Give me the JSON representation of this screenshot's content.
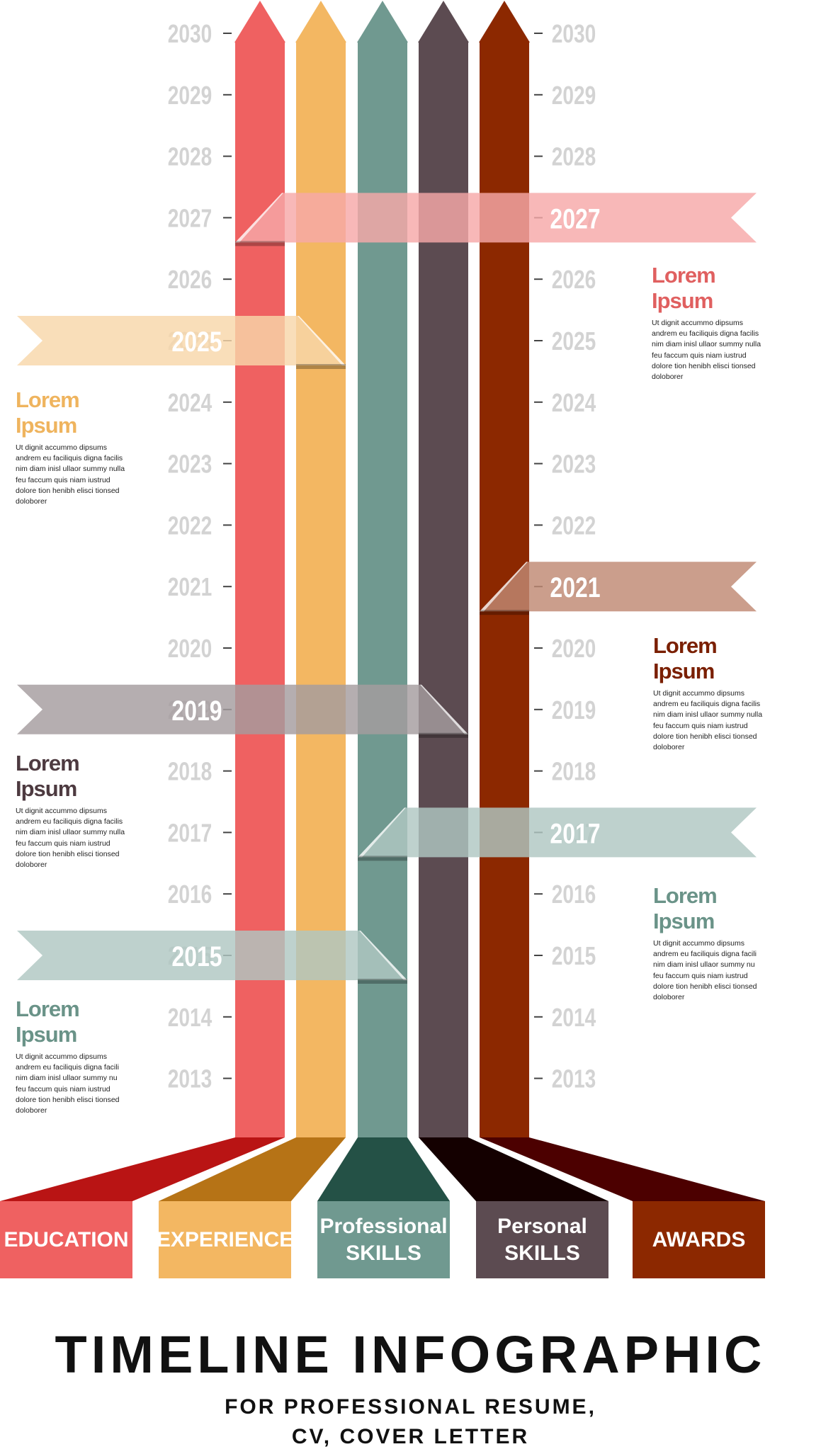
{
  "title": "TIMELINE INFOGRAPHIC",
  "subtitle": [
    "FOR PROFESSIONAL RESUME,",
    "CV, COVER LETTER"
  ],
  "years": [
    "2030",
    "2029",
    "2028",
    "2027",
    "2026",
    "2025",
    "2024",
    "2023",
    "2022",
    "2021",
    "2020",
    "2019",
    "2018",
    "2017",
    "2016",
    "2015",
    "2014",
    "2013"
  ],
  "colors": {
    "education": "#ef6161",
    "experience": "#f3b762",
    "professional_skills": "#709990",
    "personal_skills": "#5c4b51",
    "awards": "#8c2800",
    "year_axis": "#d3d3d3"
  },
  "categories": [
    {
      "key": "education",
      "label_lines": [
        "EDUCATION"
      ]
    },
    {
      "key": "experience",
      "label_lines": [
        "EXPERIENCE"
      ]
    },
    {
      "key": "professional_skills",
      "label_lines": [
        "Professional",
        "SKILLS"
      ]
    },
    {
      "key": "personal_skills",
      "label_lines": [
        "Personal",
        "SKILLS"
      ]
    },
    {
      "key": "awards",
      "label_lines": [
        "AWARDS"
      ]
    }
  ],
  "milestones": [
    {
      "year": "2027",
      "category": "education",
      "side": "right",
      "heading": "Lorem Ipsum",
      "body_lines": [
        "Ut dignit accummo dipsums",
        "andrem eu faciliquis digna facilis",
        "nim diam inisl ullaor summy nulla",
        "feu faccum quis niam iustrud",
        "dolore tion henibh elisci tionsed",
        "doloborer"
      ]
    },
    {
      "year": "2025",
      "category": "experience",
      "side": "left",
      "heading": "Lorem Ipsum",
      "body_lines": [
        "Ut dignit accummo dipsums",
        "andrem eu faciliquis digna facilis",
        "nim diam inisl ullaor summy nulla",
        "feu faccum quis niam iustrud",
        "dolore tion henibh elisci tionsed",
        "doloborer"
      ]
    },
    {
      "year": "2021",
      "category": "awards",
      "side": "right",
      "heading": "Lorem Ipsum",
      "body_lines": [
        "Ut dignit accummo dipsums",
        "andrem eu faciliquis digna facilis",
        "nim diam inisl ullaor summy nulla",
        "feu faccum quis niam iustrud",
        "dolore tion henibh elisci tionsed",
        "doloborer"
      ]
    },
    {
      "year": "2019",
      "category": "personal_skills",
      "side": "left",
      "heading": "Lorem Ipsum",
      "body_lines": [
        "Ut dignit accummo dipsums",
        "andrem eu faciliquis digna facilis",
        "nim diam inisl ullaor summy nulla",
        "feu faccum quis niam iustrud",
        "dolore tion henibh elisci tionsed",
        "doloborer"
      ]
    },
    {
      "year": "2017",
      "category": "professional_skills",
      "side": "right",
      "heading": "Lorem Ipsum",
      "body_lines": [
        "Ut dignit accummo dipsums",
        "andrem eu faciliquis digna facili",
        "nim diam inisl ullaor summy nu",
        "feu faccum quis niam iustrud",
        "dolore tion henibh elisci tionsed",
        "doloborer"
      ]
    },
    {
      "year": "2015",
      "category": "professional_skills",
      "side": "left",
      "heading": "Lorem Ipsum",
      "body_lines": [
        "Ut dignit accummo dipsums",
        "andrem eu faciliquis digna facili",
        "nim diam inisl ullaor summy nu",
        "feu faccum quis niam iustrud",
        "dolore tion henibh elisci tionsed",
        "doloborer"
      ]
    }
  ]
}
